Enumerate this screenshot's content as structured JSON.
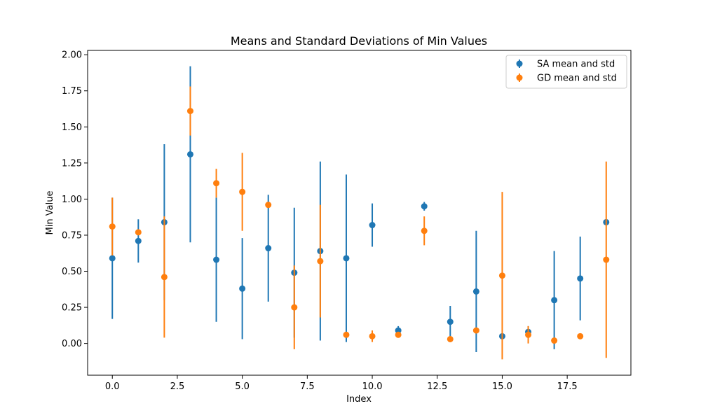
{
  "chart_data": {
    "type": "scatter",
    "title": "Means and Standard Deviations of Min Values",
    "xlabel": "Index",
    "ylabel": "Min Value",
    "xlim": [
      -0.95,
      19.95
    ],
    "ylim": [
      -0.22,
      2.03
    ],
    "xticks": [
      0.0,
      2.5,
      5.0,
      7.5,
      10.0,
      12.5,
      15.0,
      17.5
    ],
    "xtick_labels": [
      "0.0",
      "2.5",
      "5.0",
      "7.5",
      "10.0",
      "12.5",
      "15.0",
      "17.5"
    ],
    "yticks": [
      0.0,
      0.25,
      0.5,
      0.75,
      1.0,
      1.25,
      1.5,
      1.75,
      2.0
    ],
    "ytick_labels": [
      "0.00",
      "0.25",
      "0.50",
      "0.75",
      "1.00",
      "1.25",
      "1.50",
      "1.75",
      "2.00"
    ],
    "grid": false,
    "legend_position": "top-right",
    "x": [
      0,
      1,
      2,
      3,
      4,
      5,
      6,
      7,
      8,
      9,
      10,
      11,
      12,
      13,
      14,
      15,
      16,
      17,
      18,
      19
    ],
    "series": [
      {
        "name": "SA mean and std",
        "color": "#1f77b4",
        "mean": [
          0.59,
          0.71,
          0.84,
          1.31,
          0.58,
          0.38,
          0.66,
          0.49,
          0.64,
          0.59,
          0.82,
          0.09,
          0.95,
          0.15,
          0.36,
          0.05,
          0.08,
          0.3,
          0.45,
          0.84
        ],
        "std": [
          0.42,
          0.15,
          0.54,
          0.61,
          0.43,
          0.35,
          0.37,
          0.45,
          0.62,
          0.58,
          0.15,
          0.03,
          0.03,
          0.11,
          0.42,
          0.0,
          0.04,
          0.34,
          0.29,
          0.0
        ]
      },
      {
        "name": "GD mean and std",
        "color": "#ff7f0e",
        "mean": [
          0.81,
          0.77,
          0.46,
          1.61,
          1.11,
          1.05,
          0.96,
          0.25,
          0.57,
          0.06,
          0.05,
          0.06,
          0.78,
          0.03,
          0.09,
          0.47,
          0.06,
          0.02,
          0.05,
          0.58
        ],
        "std": [
          0.2,
          0.0,
          0.42,
          0.17,
          0.1,
          0.27,
          0.0,
          0.29,
          0.39,
          0.0,
          0.04,
          0.0,
          0.1,
          0.0,
          0.0,
          0.58,
          0.06,
          0.0,
          0.0,
          0.68
        ]
      }
    ]
  }
}
